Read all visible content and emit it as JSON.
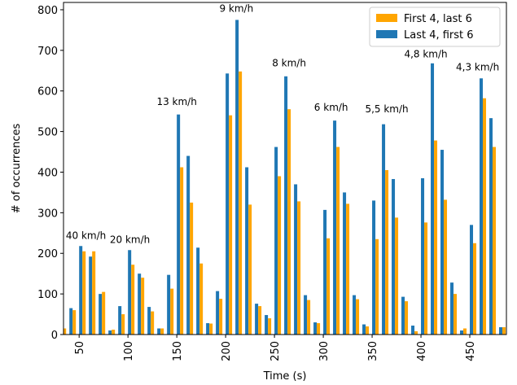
{
  "chart_data": {
    "type": "bar",
    "x_label": "Time (s)",
    "y_label": "# of occurrences",
    "x": [
      30,
      40,
      50,
      60,
      70,
      80,
      90,
      100,
      110,
      120,
      130,
      140,
      150,
      160,
      170,
      180,
      190,
      200,
      210,
      220,
      230,
      240,
      250,
      260,
      270,
      280,
      290,
      300,
      310,
      320,
      330,
      340,
      350,
      360,
      370,
      380,
      390,
      400,
      410,
      420,
      430,
      440,
      450,
      460,
      470,
      480
    ],
    "series": [
      {
        "name": "First 4, last 6",
        "color": "#ffa500",
        "values": [
          15,
          60,
          205,
          205,
          105,
          12,
          50,
          172,
          140,
          57,
          15,
          113,
          412,
          325,
          175,
          27,
          88,
          540,
          648,
          320,
          70,
          40,
          390,
          555,
          328,
          85,
          28,
          237,
          462,
          322,
          87,
          20,
          235,
          405,
          288,
          82,
          8,
          276,
          478,
          332,
          100,
          15,
          225,
          582,
          462,
          18
        ]
      },
      {
        "name": "Last 4, first 6",
        "color": "#1f77b4",
        "values": [
          0,
          65,
          218,
          192,
          100,
          10,
          70,
          208,
          150,
          68,
          15,
          147,
          542,
          440,
          214,
          28,
          107,
          643,
          775,
          412,
          76,
          48,
          462,
          636,
          370,
          97,
          30,
          307,
          527,
          350,
          97,
          25,
          330,
          518,
          383,
          93,
          22,
          385,
          668,
          455,
          128,
          10,
          270,
          631,
          533,
          18
        ]
      }
    ],
    "xlim": [
      34,
      487.5
    ],
    "ylim": [
      0,
      818
    ],
    "xticks": [
      50,
      100,
      150,
      200,
      250,
      300,
      350,
      400,
      450
    ],
    "yticks": [
      0,
      100,
      200,
      300,
      400,
      500,
      600,
      700,
      800
    ],
    "legend": "upper right",
    "annotations": [
      {
        "text": "40 km/h",
        "x": 57,
        "y": 236
      },
      {
        "text": "20 km/h",
        "x": 102,
        "y": 226
      },
      {
        "text": "13 km/h",
        "x": 150,
        "y": 565
      },
      {
        "text": "9 km/h",
        "x": 211,
        "y": 795
      },
      {
        "text": "8 km/h",
        "x": 265,
        "y": 661
      },
      {
        "text": "6 km/h",
        "x": 308,
        "y": 551
      },
      {
        "text": "5,5 km/h",
        "x": 365,
        "y": 547
      },
      {
        "text": "4,8 km/h",
        "x": 405,
        "y": 683
      },
      {
        "text": "4,3 km/h",
        "x": 458,
        "y": 651
      }
    ]
  }
}
